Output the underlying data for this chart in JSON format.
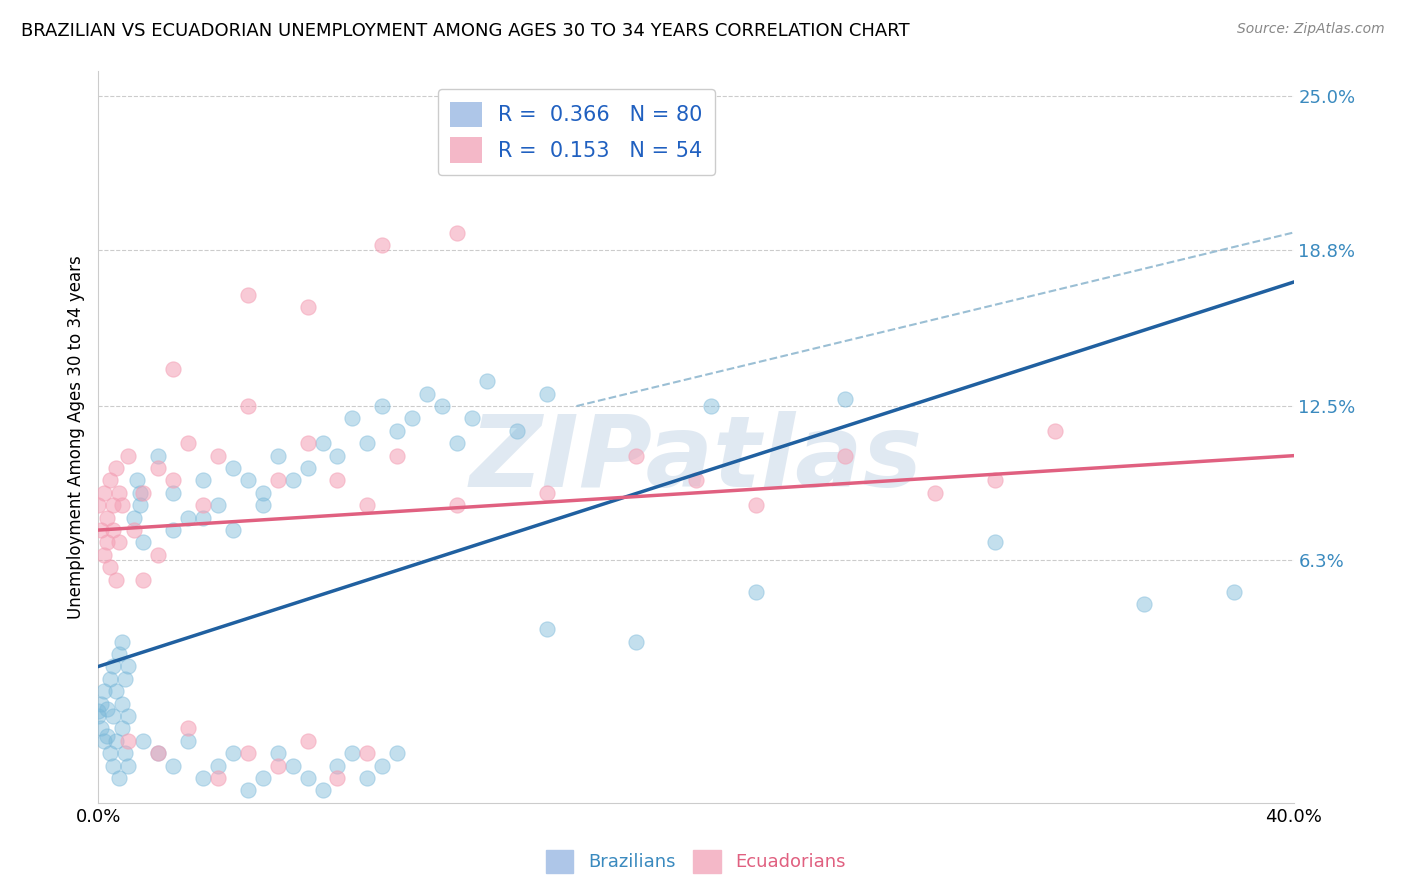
{
  "title": "BRAZILIAN VS ECUADORIAN UNEMPLOYMENT AMONG AGES 30 TO 34 YEARS CORRELATION CHART",
  "source": "Source: ZipAtlas.com",
  "ylabel": "Unemployment Among Ages 30 to 34 years",
  "xlim": [
    0.0,
    40.0
  ],
  "ylim": [
    -3.5,
    26.0
  ],
  "yticks": [
    6.3,
    12.5,
    18.8,
    25.0
  ],
  "ytick_labels": [
    "6.3%",
    "12.5%",
    "18.8%",
    "25.0%"
  ],
  "xtick_labels": [
    "0.0%",
    "40.0%"
  ],
  "xtick_positions": [
    0.0,
    40.0
  ],
  "brazil_color": "#7ab8d9",
  "ecuador_color": "#f4a0b5",
  "brazil_line_color": "#2060a0",
  "ecuador_line_color": "#e06080",
  "dash_color": "#90b8d0",
  "watermark": "ZIPatlas",
  "brazil_line": [
    0.0,
    2.0,
    40.0,
    17.5
  ],
  "ecuador_line": [
    0.0,
    7.5,
    40.0,
    10.5
  ],
  "dash_line": [
    16.0,
    12.5,
    40.0,
    19.5
  ],
  "brazil_points": [
    [
      0.0,
      0.0
    ],
    [
      0.0,
      0.2
    ],
    [
      0.1,
      -0.5
    ],
    [
      0.1,
      0.5
    ],
    [
      0.2,
      1.0
    ],
    [
      0.2,
      -1.0
    ],
    [
      0.3,
      0.3
    ],
    [
      0.3,
      -0.8
    ],
    [
      0.4,
      1.5
    ],
    [
      0.4,
      -1.5
    ],
    [
      0.5,
      2.0
    ],
    [
      0.5,
      -2.0
    ],
    [
      0.5,
      0.0
    ],
    [
      0.6,
      1.0
    ],
    [
      0.6,
      -1.0
    ],
    [
      0.7,
      2.5
    ],
    [
      0.7,
      -2.5
    ],
    [
      0.8,
      0.5
    ],
    [
      0.8,
      -0.5
    ],
    [
      0.8,
      3.0
    ],
    [
      0.9,
      1.5
    ],
    [
      0.9,
      -1.5
    ],
    [
      1.0,
      0.0
    ],
    [
      1.0,
      2.0
    ],
    [
      1.0,
      -2.0
    ],
    [
      1.2,
      8.0
    ],
    [
      1.3,
      9.5
    ],
    [
      1.4,
      8.5
    ],
    [
      1.4,
      9.0
    ],
    [
      1.5,
      7.0
    ],
    [
      2.0,
      10.5
    ],
    [
      2.5,
      9.0
    ],
    [
      3.0,
      8.0
    ],
    [
      3.5,
      9.5
    ],
    [
      4.0,
      8.5
    ],
    [
      4.5,
      10.0
    ],
    [
      5.0,
      9.5
    ],
    [
      5.5,
      9.0
    ],
    [
      6.0,
      10.5
    ],
    [
      6.5,
      9.5
    ],
    [
      7.0,
      10.0
    ],
    [
      7.5,
      11.0
    ],
    [
      8.0,
      10.5
    ],
    [
      8.5,
      12.0
    ],
    [
      9.0,
      11.0
    ],
    [
      9.5,
      12.5
    ],
    [
      10.0,
      11.5
    ],
    [
      10.5,
      12.0
    ],
    [
      11.0,
      13.0
    ],
    [
      11.5,
      12.5
    ],
    [
      12.0,
      11.0
    ],
    [
      12.5,
      12.0
    ],
    [
      13.0,
      13.5
    ],
    [
      14.0,
      11.5
    ],
    [
      15.0,
      13.0
    ],
    [
      1.5,
      -1.0
    ],
    [
      2.0,
      -1.5
    ],
    [
      2.5,
      -2.0
    ],
    [
      3.0,
      -1.0
    ],
    [
      3.5,
      -2.5
    ],
    [
      4.0,
      -2.0
    ],
    [
      4.5,
      -1.5
    ],
    [
      5.0,
      -3.0
    ],
    [
      5.5,
      -2.5
    ],
    [
      6.0,
      -1.5
    ],
    [
      6.5,
      -2.0
    ],
    [
      7.0,
      -2.5
    ],
    [
      7.5,
      -3.0
    ],
    [
      8.0,
      -2.0
    ],
    [
      8.5,
      -1.5
    ],
    [
      9.0,
      -2.5
    ],
    [
      9.5,
      -2.0
    ],
    [
      10.0,
      -1.5
    ],
    [
      20.5,
      12.5
    ],
    [
      25.0,
      12.8
    ],
    [
      15.0,
      3.5
    ],
    [
      18.0,
      3.0
    ],
    [
      22.0,
      5.0
    ],
    [
      30.0,
      7.0
    ],
    [
      35.0,
      4.5
    ],
    [
      38.0,
      5.0
    ],
    [
      2.5,
      7.5
    ],
    [
      3.5,
      8.0
    ],
    [
      4.5,
      7.5
    ],
    [
      5.5,
      8.5
    ]
  ],
  "ecuador_points": [
    [
      0.0,
      8.5
    ],
    [
      0.1,
      7.5
    ],
    [
      0.2,
      9.0
    ],
    [
      0.2,
      6.5
    ],
    [
      0.3,
      8.0
    ],
    [
      0.3,
      7.0
    ],
    [
      0.4,
      9.5
    ],
    [
      0.4,
      6.0
    ],
    [
      0.5,
      8.5
    ],
    [
      0.5,
      7.5
    ],
    [
      0.6,
      10.0
    ],
    [
      0.6,
      5.5
    ],
    [
      0.7,
      9.0
    ],
    [
      0.7,
      7.0
    ],
    [
      0.8,
      8.5
    ],
    [
      1.0,
      10.5
    ],
    [
      1.2,
      7.5
    ],
    [
      1.5,
      9.0
    ],
    [
      1.5,
      5.5
    ],
    [
      2.0,
      10.0
    ],
    [
      2.0,
      6.5
    ],
    [
      2.5,
      9.5
    ],
    [
      3.0,
      11.0
    ],
    [
      3.5,
      8.5
    ],
    [
      4.0,
      10.5
    ],
    [
      5.0,
      12.5
    ],
    [
      6.0,
      9.5
    ],
    [
      7.0,
      11.0
    ],
    [
      8.0,
      9.5
    ],
    [
      9.0,
      8.5
    ],
    [
      10.0,
      10.5
    ],
    [
      12.0,
      8.5
    ],
    [
      15.0,
      9.0
    ],
    [
      18.0,
      10.5
    ],
    [
      20.0,
      9.5
    ],
    [
      22.0,
      8.5
    ],
    [
      25.0,
      10.5
    ],
    [
      28.0,
      9.0
    ],
    [
      30.0,
      9.5
    ],
    [
      32.0,
      11.5
    ],
    [
      2.5,
      14.0
    ],
    [
      5.0,
      17.0
    ],
    [
      7.0,
      16.5
    ],
    [
      9.5,
      19.0
    ],
    [
      12.0,
      19.5
    ],
    [
      1.0,
      -1.0
    ],
    [
      2.0,
      -1.5
    ],
    [
      3.0,
      -0.5
    ],
    [
      4.0,
      -2.5
    ],
    [
      5.0,
      -1.5
    ],
    [
      6.0,
      -2.0
    ],
    [
      7.0,
      -1.0
    ],
    [
      8.0,
      -2.5
    ],
    [
      9.0,
      -1.5
    ]
  ]
}
